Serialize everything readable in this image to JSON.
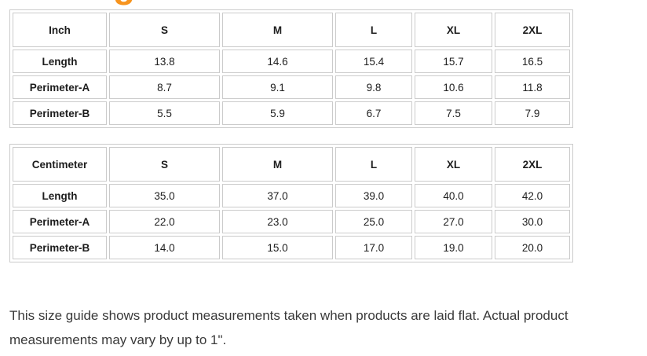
{
  "heading": {
    "clipped_text": "g"
  },
  "colors": {
    "accent_orange": "#f7941e",
    "border_gray": "#cbcbcb",
    "text_dark": "#3a3a3a"
  },
  "tables": [
    {
      "unit_label": "Inch",
      "sizes": [
        "S",
        "M",
        "L",
        "XL",
        "2XL"
      ],
      "rows": [
        {
          "label": "Length",
          "values": [
            "13.8",
            "14.6",
            "15.4",
            "15.7",
            "16.5"
          ]
        },
        {
          "label": "Perimeter-A",
          "values": [
            "8.7",
            "9.1",
            "9.8",
            "10.6",
            "11.8"
          ]
        },
        {
          "label": "Perimeter-B",
          "values": [
            "5.5",
            "5.9",
            "6.7",
            "7.5",
            "7.9"
          ]
        }
      ]
    },
    {
      "unit_label": "Centimeter",
      "sizes": [
        "S",
        "M",
        "L",
        "XL",
        "2XL"
      ],
      "rows": [
        {
          "label": "Length",
          "values": [
            "35.0",
            "37.0",
            "39.0",
            "40.0",
            "42.0"
          ]
        },
        {
          "label": "Perimeter-A",
          "values": [
            "22.0",
            "23.0",
            "25.0",
            "27.0",
            "30.0"
          ]
        },
        {
          "label": "Perimeter-B",
          "values": [
            "14.0",
            "15.0",
            "17.0",
            "19.0",
            "20.0"
          ]
        }
      ]
    }
  ],
  "note": "This size guide shows product measurements taken when products are laid flat. Actual product measurements may vary by up to 1\"."
}
